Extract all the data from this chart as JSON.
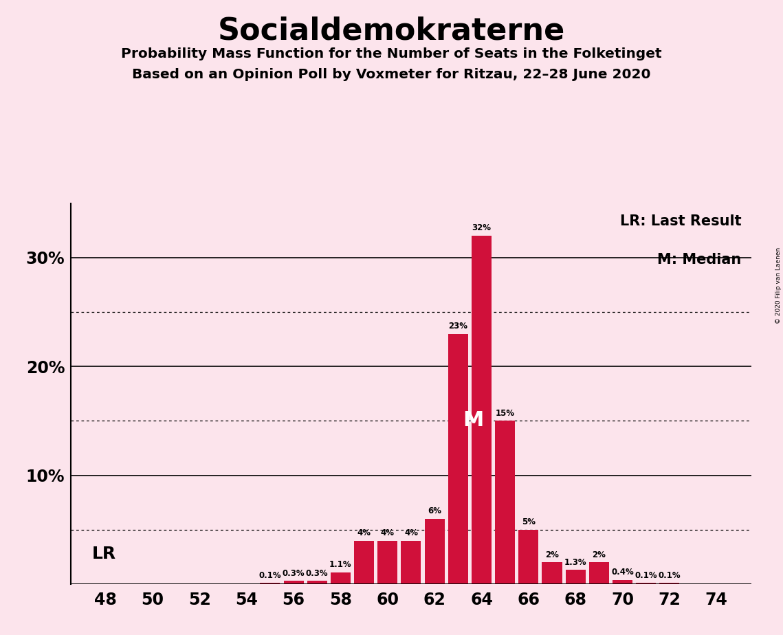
{
  "title": "Socialdemokraterne",
  "subtitle1": "Probability Mass Function for the Number of Seats in the Folketinget",
  "subtitle2": "Based on an Opinion Poll by Voxmeter for Ritzau, 22–28 June 2020",
  "copyright": "© 2020 Filip van Laenen",
  "seats": [
    48,
    49,
    50,
    51,
    52,
    53,
    54,
    55,
    56,
    57,
    58,
    59,
    60,
    61,
    62,
    63,
    64,
    65,
    66,
    67,
    68,
    69,
    70,
    71,
    72,
    73,
    74
  ],
  "probabilities": [
    0.0,
    0.0,
    0.0,
    0.0,
    0.0,
    0.0,
    0.0,
    0.1,
    0.3,
    0.3,
    1.1,
    4.0,
    4.0,
    4.0,
    6.0,
    23.0,
    32.0,
    15.0,
    5.0,
    2.0,
    1.3,
    2.0,
    0.4,
    0.1,
    0.1,
    0.0,
    0.0
  ],
  "bar_color": "#d0103a",
  "background_color": "#fce4ec",
  "text_color": "#000000",
  "median_seat": 64,
  "lr_seat": 48,
  "xtick_seats": [
    48,
    50,
    52,
    54,
    56,
    58,
    60,
    62,
    64,
    66,
    68,
    70,
    72,
    74
  ],
  "ylim": [
    0,
    35
  ],
  "solid_gridlines": [
    10,
    20,
    30
  ],
  "dotted_gridlines": [
    5,
    15,
    25
  ],
  "legend_lr": "LR: Last Result",
  "legend_m": "M: Median"
}
